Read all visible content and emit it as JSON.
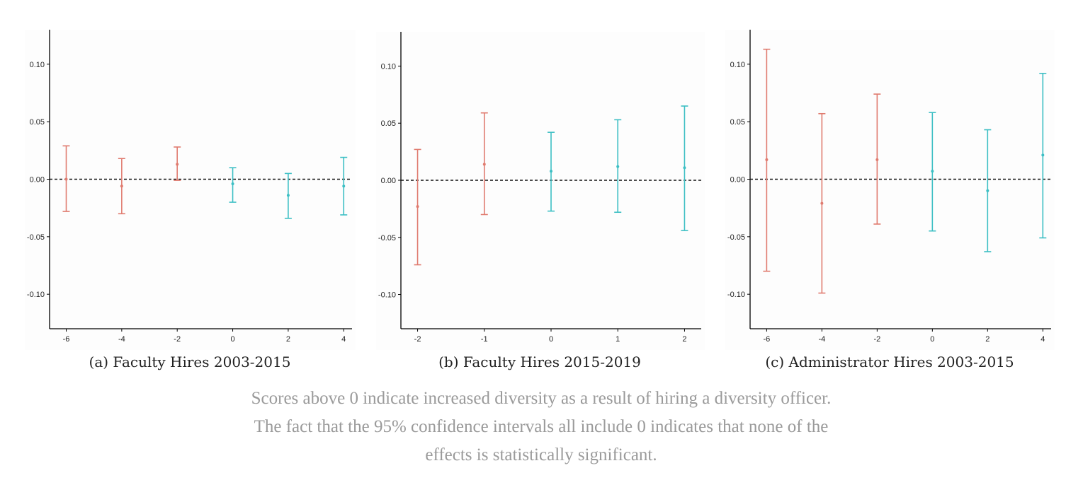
{
  "colors": {
    "pre": "#e07b6f",
    "post": "#3dbfc4",
    "axis": "#000000"
  },
  "chart_data": [
    {
      "type": "errorbar",
      "caption": "(a) Faculty Hires 2003-2015",
      "xticks": [
        "-6",
        "-4",
        "-2",
        "0",
        "2",
        "4"
      ],
      "xlim": [
        -6.6,
        4.3
      ],
      "ylim": [
        -0.13,
        0.13
      ],
      "yticks": [
        "0.10",
        "0.05",
        "0.00",
        "-0.05",
        "-0.10"
      ],
      "ytick_values": [
        0.1,
        0.05,
        0.0,
        -0.05,
        -0.1
      ],
      "reference_line": 0,
      "points": [
        {
          "x": -6,
          "y": 0.0,
          "lo": -0.028,
          "hi": 0.029,
          "group": "pre"
        },
        {
          "x": -4,
          "y": -0.006,
          "lo": -0.03,
          "hi": 0.018,
          "group": "pre"
        },
        {
          "x": -2,
          "y": 0.013,
          "lo": -0.001,
          "hi": 0.028,
          "group": "pre"
        },
        {
          "x": 0,
          "y": -0.004,
          "lo": -0.02,
          "hi": 0.01,
          "group": "post"
        },
        {
          "x": 2,
          "y": -0.014,
          "lo": -0.034,
          "hi": 0.005,
          "group": "post"
        },
        {
          "x": 4,
          "y": -0.006,
          "lo": -0.031,
          "hi": 0.019,
          "group": "post"
        }
      ]
    },
    {
      "type": "errorbar",
      "caption": "(b) Faculty Hires 2015-2019",
      "xticks": [
        "-2",
        "-1",
        "0",
        "1",
        "2"
      ],
      "xlim": [
        -2.25,
        2.25
      ],
      "ylim": [
        -0.13,
        0.13
      ],
      "yticks": [
        "0.10",
        "0.05",
        "0.00",
        "-0.05",
        "-0.10"
      ],
      "ytick_values": [
        0.1,
        0.05,
        0.0,
        -0.05,
        -0.1
      ],
      "reference_line": 0,
      "points": [
        {
          "x": -2,
          "y": -0.023,
          "lo": -0.074,
          "hi": 0.027,
          "group": "pre"
        },
        {
          "x": -1,
          "y": 0.014,
          "lo": -0.03,
          "hi": 0.059,
          "group": "pre"
        },
        {
          "x": 0,
          "y": 0.008,
          "lo": -0.027,
          "hi": 0.042,
          "group": "post"
        },
        {
          "x": 1,
          "y": 0.012,
          "lo": -0.028,
          "hi": 0.053,
          "group": "post"
        },
        {
          "x": 2,
          "y": 0.011,
          "lo": -0.044,
          "hi": 0.065,
          "group": "post"
        }
      ]
    },
    {
      "type": "errorbar",
      "caption": "(c) Administrator Hires 2003-2015",
      "xticks": [
        "-6",
        "-4",
        "-2",
        "0",
        "2",
        "4"
      ],
      "xlim": [
        -6.6,
        4.3
      ],
      "ylim": [
        -0.13,
        0.13
      ],
      "yticks": [
        "0.10",
        "0.05",
        "0.00",
        "-0.05",
        "-0.10"
      ],
      "ytick_values": [
        0.1,
        0.05,
        0.0,
        -0.05,
        -0.1
      ],
      "reference_line": 0,
      "points": [
        {
          "x": -6,
          "y": 0.017,
          "lo": -0.08,
          "hi": 0.113,
          "group": "pre"
        },
        {
          "x": -4,
          "y": -0.021,
          "lo": -0.099,
          "hi": 0.057,
          "group": "pre"
        },
        {
          "x": -2,
          "y": 0.017,
          "lo": -0.039,
          "hi": 0.074,
          "group": "pre"
        },
        {
          "x": 0,
          "y": 0.007,
          "lo": -0.045,
          "hi": 0.058,
          "group": "post"
        },
        {
          "x": 2,
          "y": -0.01,
          "lo": -0.063,
          "hi": 0.043,
          "group": "post"
        },
        {
          "x": 4,
          "y": 0.021,
          "lo": -0.051,
          "hi": 0.092,
          "group": "post"
        }
      ]
    }
  ],
  "caption_lines": [
    "Scores above 0 indicate increased diversity as a result of hiring a diversity officer.",
    "The fact that the 95% confidence intervals all include 0 indicates that none of the",
    "effects is statistically significant."
  ]
}
